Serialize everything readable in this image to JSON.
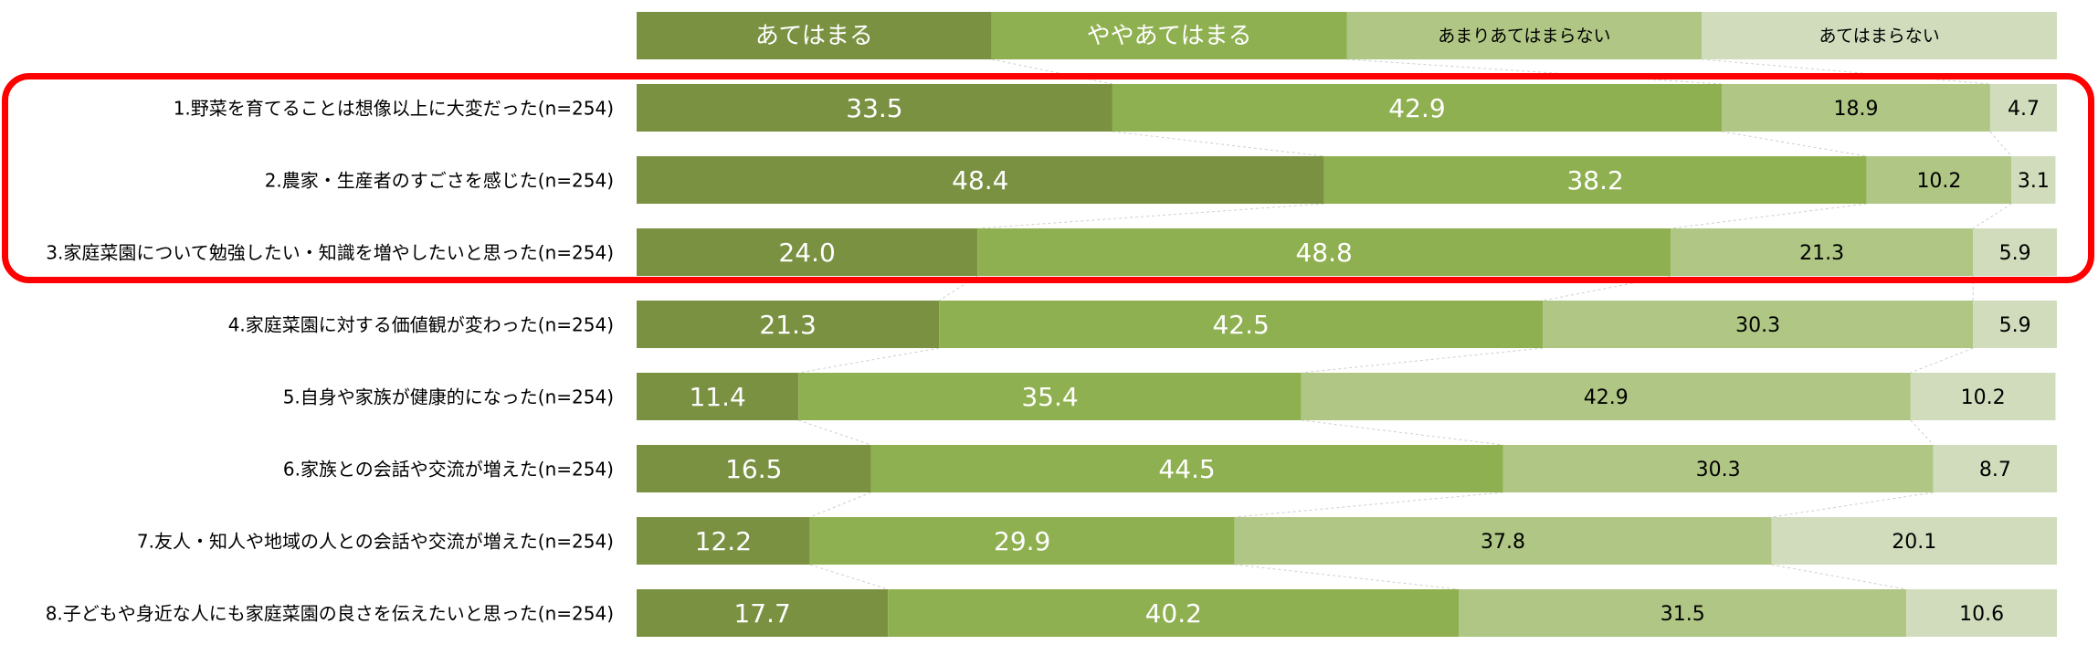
{
  "chart_data": {
    "type": "bar",
    "orientation": "horizontal",
    "stacked": "100%",
    "xlim": [
      0,
      100
    ],
    "grid": false,
    "legend_position": "top",
    "categories": [
      "1.野菜を育てることは想像以上に大変だった(n=254)",
      "2.農家・生産者のすごさを感じた(n=254)",
      "3.家庭菜園について勉強したい・知識を増やしたいと思った(n=254)",
      "4.家庭菜園に対する価値観が変わった(n=254)",
      "5.自身や家族が健康的になった(n=254)",
      "6.家族との会話や交流が増えた(n=254)",
      "7.友人・知人や地域の人との会話や交流が増えた(n=254)",
      "8.子どもや身近な人にも家庭菜園の良さを伝えたいと思った(n=254)"
    ],
    "series": [
      {
        "name": "あてはまる",
        "color": "#7a9142",
        "values": [
          33.5,
          48.4,
          24.0,
          21.3,
          11.4,
          16.5,
          12.2,
          17.7
        ]
      },
      {
        "name": "ややあてはまる",
        "color": "#8fb050",
        "values": [
          42.9,
          38.2,
          48.8,
          42.5,
          35.4,
          44.5,
          29.9,
          40.2
        ]
      },
      {
        "name": "あまりあてはまらない",
        "color": "#afc684",
        "values": [
          18.9,
          10.2,
          21.3,
          30.3,
          42.9,
          30.3,
          37.8,
          31.5
        ]
      },
      {
        "name": "あてはまらない",
        "color": "#d1dcbc",
        "values": [
          4.7,
          3.1,
          5.9,
          5.9,
          10.2,
          8.7,
          20.1,
          10.6
        ]
      }
    ],
    "highlighted_rows": [
      0,
      1,
      2
    ],
    "highlight_color": "#ff0000"
  }
}
